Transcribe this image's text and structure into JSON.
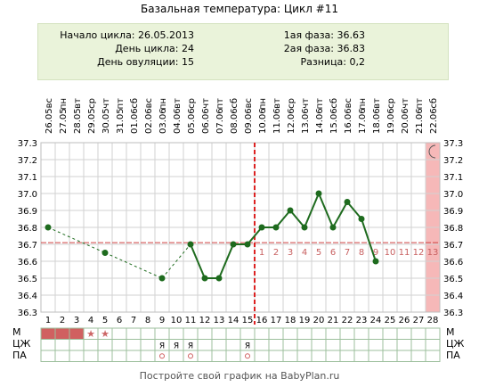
{
  "title": "Базальная температура: Цикл #11",
  "summary": {
    "cycle_start": "Начало цикла: 26.05.2013",
    "cycle_length": "День цикла: 24",
    "ovulation_day": "День овуляции: 15",
    "phase1": "1ая фаза: 36.63",
    "phase2": "2ая фаза: 36.83",
    "difference": "Разница: 0,2"
  },
  "footer": "Постройте свой график на BabyPlan.ru",
  "row_labels": [
    "М",
    "ЦЖ",
    "ПА"
  ],
  "colors": {
    "temperature_line": "#1e6b1e",
    "coverline": "#d04040",
    "ovulation_line": "#dd2222",
    "menses": "#d06060",
    "forecast_column": "#f6b8b8",
    "summary_bg": "#eaf3da"
  },
  "chart_data": {
    "type": "line",
    "title": "Базальная температура: Цикл #11",
    "x_days": [
      1,
      2,
      3,
      4,
      5,
      6,
      7,
      8,
      9,
      10,
      11,
      12,
      13,
      14,
      15,
      16,
      17,
      18,
      19,
      20,
      21,
      22,
      23,
      24,
      25,
      26,
      27,
      28
    ],
    "dates": [
      "26.05",
      "27.05",
      "28.05",
      "29.05",
      "30.05",
      "31.05",
      "01.06",
      "02.06",
      "03.06",
      "04.06",
      "05.06",
      "06.06",
      "07.06",
      "08.06",
      "09.06",
      "10.06",
      "11.06",
      "12.06",
      "13.06",
      "14.06",
      "15.06",
      "16.06",
      "17.06",
      "18.06",
      "19.06",
      "20.06",
      "21.06",
      "22.06"
    ],
    "weekdays": [
      "вс",
      "пн",
      "вт",
      "ср",
      "чт",
      "пт",
      "сб",
      "вс",
      "пн",
      "вт",
      "ср",
      "чт",
      "пт",
      "сб",
      "вс",
      "пн",
      "вт",
      "ср",
      "чт",
      "пт",
      "сб",
      "вс",
      "пн",
      "вт",
      "ср",
      "чт",
      "пт",
      "сб"
    ],
    "y_ticks": [
      "36.3",
      "36.4",
      "36.5",
      "36.6",
      "36.7",
      "36.8",
      "36.9",
      "37.0",
      "37.1",
      "37.2",
      "37.3"
    ],
    "ylim": [
      36.3,
      37.3
    ],
    "points": [
      {
        "day": 1,
        "temp": 36.8
      },
      {
        "day": 5,
        "temp": 36.65
      },
      {
        "day": 9,
        "temp": 36.5
      },
      {
        "day": 11,
        "temp": 36.7
      },
      {
        "day": 12,
        "temp": 36.5
      },
      {
        "day": 13,
        "temp": 36.5
      },
      {
        "day": 14,
        "temp": 36.7
      },
      {
        "day": 15,
        "temp": 36.7
      },
      {
        "day": 16,
        "temp": 36.8
      },
      {
        "day": 17,
        "temp": 36.8
      },
      {
        "day": 18,
        "temp": 36.9
      },
      {
        "day": 19,
        "temp": 36.8
      },
      {
        "day": 20,
        "temp": 37.0
      },
      {
        "day": 21,
        "temp": 36.8
      },
      {
        "day": 22,
        "temp": 36.95
      },
      {
        "day": 23,
        "temp": 36.85
      },
      {
        "day": 24,
        "temp": 36.6
      }
    ],
    "dashed_segments": [
      [
        1,
        5
      ],
      [
        5,
        9
      ],
      [
        9,
        11
      ]
    ],
    "coverline": 36.71,
    "ovulation_day": 15,
    "luteal_labels": [
      "1",
      "2",
      "3",
      "4",
      "5",
      "6",
      "7",
      "8",
      "9",
      "10",
      "11",
      "12",
      "13"
    ],
    "menses_days": [
      1,
      2,
      3
    ],
    "menses_star_days": [
      4,
      5
    ],
    "cm_marks": [
      {
        "day": 9,
        "text": "Я"
      },
      {
        "day": 10,
        "text": "Я"
      },
      {
        "day": 11,
        "text": "Я"
      },
      {
        "day": 15,
        "text": "Я"
      }
    ],
    "intercourse_days": [
      9,
      11,
      15
    ],
    "forecast_day": 28,
    "grid": true
  }
}
